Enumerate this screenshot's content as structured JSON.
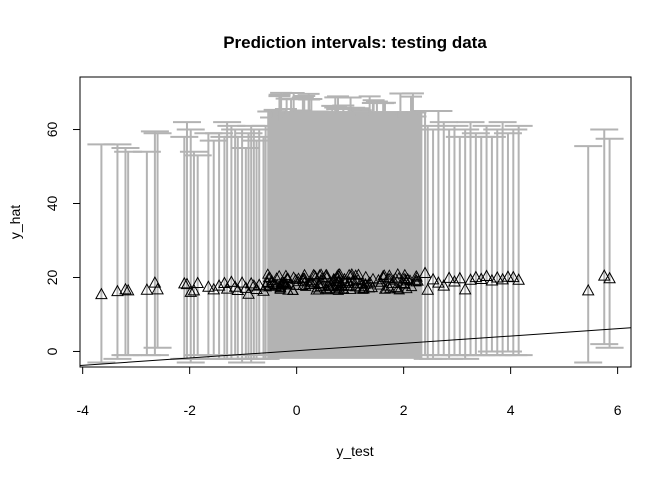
{
  "chart_data": {
    "type": "scatter",
    "title": "Prediction intervals: testing data",
    "xlabel": "y_test",
    "ylabel": "y_hat",
    "xlim": [
      -4.05,
      6.25
    ],
    "ylim": [
      -4.2,
      74.2
    ],
    "x_ticks": [
      "-4",
      "-2",
      "0",
      "2",
      "4",
      "6"
    ],
    "y_ticks": [
      "0",
      "20",
      "40",
      "60"
    ],
    "x_tick_values": [
      -4,
      -2,
      0,
      2,
      4,
      6
    ],
    "y_tick_values": [
      0,
      20,
      40,
      60
    ],
    "grid": false,
    "legend": "none",
    "interval_color": "#b3b3b3",
    "point_marker": "open-triangle",
    "dense_band": {
      "x_range": [
        -0.55,
        2.35
      ],
      "lower": -2,
      "upper": 65,
      "note_points_y_range": [
        16.5,
        21
      ]
    },
    "reference_line": {
      "x": [
        -4.05,
        6.25
      ],
      "y": [
        -3.8,
        6.4
      ]
    },
    "series": [
      {
        "points": [
          {
            "x": -3.65,
            "y": 15.5,
            "lo": -3,
            "hi": 56
          },
          {
            "x": -3.35,
            "y": 16.3,
            "lo": -2,
            "hi": 56
          },
          {
            "x": -3.2,
            "y": 16.8,
            "lo": -1,
            "hi": 55
          },
          {
            "x": -3.15,
            "y": 16.5,
            "lo": -1,
            "hi": 54
          },
          {
            "x": -2.8,
            "y": 16.7,
            "lo": -1,
            "hi": 54
          },
          {
            "x": -2.65,
            "y": 18.6,
            "lo": -1,
            "hi": 59.5
          },
          {
            "x": -2.6,
            "y": 16.8,
            "lo": 1,
            "hi": 59
          },
          {
            "x": -2.1,
            "y": 18.4,
            "lo": -2,
            "hi": 58
          },
          {
            "x": -2.05,
            "y": 18.2,
            "lo": -2,
            "hi": 62
          },
          {
            "x": -1.98,
            "y": 16.1,
            "lo": -3,
            "hi": 60
          },
          {
            "x": -1.92,
            "y": 16.5,
            "lo": -2,
            "hi": 54
          },
          {
            "x": -1.85,
            "y": 18.5,
            "lo": -1,
            "hi": 53
          },
          {
            "x": -1.65,
            "y": 17.5,
            "lo": -2,
            "hi": 59
          },
          {
            "x": -1.55,
            "y": 16.8,
            "lo": -1,
            "hi": 57
          },
          {
            "x": -1.45,
            "y": 17.8,
            "lo": -2,
            "hi": 59
          },
          {
            "x": -1.35,
            "y": 18.5,
            "lo": -2,
            "hi": 58
          },
          {
            "x": -1.3,
            "y": 17.0,
            "lo": -2,
            "hi": 62
          },
          {
            "x": -1.22,
            "y": 18.8,
            "lo": -2,
            "hi": 61
          },
          {
            "x": -1.15,
            "y": 17.5,
            "lo": -1,
            "hi": 60
          },
          {
            "x": -1.1,
            "y": 16.6,
            "lo": -2,
            "hi": 58
          },
          {
            "x": -1.02,
            "y": 18.6,
            "lo": -3,
            "hi": 60
          },
          {
            "x": -0.95,
            "y": 17.2,
            "lo": -2,
            "hi": 55
          },
          {
            "x": -0.9,
            "y": 15.6,
            "lo": -2,
            "hi": 59
          },
          {
            "x": -0.85,
            "y": 18.4,
            "lo": -3,
            "hi": 61
          },
          {
            "x": -0.8,
            "y": 17.8,
            "lo": -2,
            "hi": 60
          },
          {
            "x": -0.75,
            "y": 16.9,
            "lo": -2,
            "hi": 57
          },
          {
            "x": -0.7,
            "y": 18.0,
            "lo": -1,
            "hi": 60
          },
          {
            "x": -0.62,
            "y": 16.4,
            "lo": -2,
            "hi": 58
          },
          {
            "x": -0.58,
            "y": 17.6,
            "lo": -2,
            "hi": 61
          },
          {
            "x": 2.4,
            "y": 21.2,
            "lo": -1,
            "hi": 65
          },
          {
            "x": 2.45,
            "y": 16.7,
            "lo": -2,
            "hi": 61
          },
          {
            "x": 2.55,
            "y": 19.5,
            "lo": -2,
            "hi": 60
          },
          {
            "x": 2.65,
            "y": 18.6,
            "lo": -1,
            "hi": 65
          },
          {
            "x": 2.75,
            "y": 17.8,
            "lo": -1,
            "hi": 62
          },
          {
            "x": 2.85,
            "y": 19.9,
            "lo": -2,
            "hi": 60
          },
          {
            "x": 2.95,
            "y": 18.9,
            "lo": -1,
            "hi": 61
          },
          {
            "x": 3.05,
            "y": 19.8,
            "lo": -1,
            "hi": 58
          },
          {
            "x": 3.15,
            "y": 16.8,
            "lo": -2,
            "hi": 60
          },
          {
            "x": 3.25,
            "y": 19.4,
            "lo": -1,
            "hi": 62
          },
          {
            "x": 3.35,
            "y": 20.1,
            "lo": -1,
            "hi": 59
          },
          {
            "x": 3.45,
            "y": 19.6,
            "lo": -1,
            "hi": 58
          },
          {
            "x": 3.55,
            "y": 20.4,
            "lo": -1,
            "hi": 61
          },
          {
            "x": 3.65,
            "y": 19.2,
            "lo": 0,
            "hi": 58
          },
          {
            "x": 3.75,
            "y": 20.0,
            "lo": -1,
            "hi": 60
          },
          {
            "x": 3.85,
            "y": 19.5,
            "lo": -1,
            "hi": 62
          },
          {
            "x": 3.95,
            "y": 20.2,
            "lo": 0,
            "hi": 59
          },
          {
            "x": 4.05,
            "y": 20.1,
            "lo": -1,
            "hi": 60
          },
          {
            "x": 4.15,
            "y": 19.4,
            "lo": -1,
            "hi": 61
          },
          {
            "x": 5.45,
            "y": 16.5,
            "lo": -3,
            "hi": 55.5
          },
          {
            "x": 5.75,
            "y": 20.5,
            "lo": 2,
            "hi": 60
          },
          {
            "x": 5.85,
            "y": 19.8,
            "lo": 1,
            "hi": 57.5
          }
        ]
      }
    ]
  }
}
